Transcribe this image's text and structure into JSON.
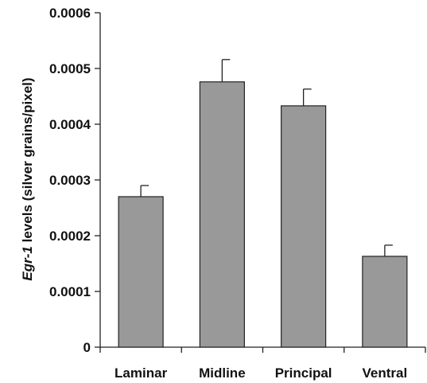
{
  "chart_data": {
    "type": "bar",
    "title": "",
    "xlabel": "",
    "ylabel": {
      "gene": "Egr-1",
      "rest": " levels (silver grains/pixel)"
    },
    "categories": [
      "Laminar",
      "Midline",
      "Principal",
      "Ventral"
    ],
    "values": [
      0.00027,
      0.000476,
      0.000433,
      0.000163
    ],
    "errors": [
      2e-05,
      4e-05,
      3e-05,
      2e-05
    ],
    "ylim": [
      0,
      0.0006
    ],
    "yticks": [
      0,
      0.0001,
      0.0002,
      0.0003,
      0.0004,
      0.0005,
      0.0006
    ],
    "ytick_labels": [
      "0",
      "0.0001",
      "0.0002",
      "0.0003",
      "0.0004",
      "0.0005",
      "0.0006"
    ],
    "bar_color": "#999999",
    "grid": false,
    "legend": "none"
  }
}
